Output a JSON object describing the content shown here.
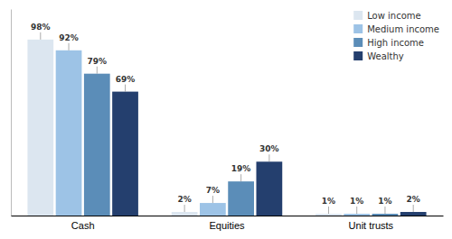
{
  "chart_data": {
    "type": "bar",
    "categories": [
      "Cash",
      "Equities",
      "Unit trusts"
    ],
    "series": [
      {
        "name": "Low income",
        "color": "#dce6f0",
        "values": [
          98,
          2,
          1
        ],
        "value_labels": [
          "98%",
          "2%",
          "1%"
        ]
      },
      {
        "name": "Medium income",
        "color": "#9dc3e6",
        "values": [
          92,
          7,
          1
        ],
        "value_labels": [
          "92%",
          "7%",
          "1%"
        ]
      },
      {
        "name": "High income",
        "color": "#5b8db8",
        "values": [
          79,
          19,
          1
        ],
        "value_labels": [
          "79%",
          "19%",
          "1%"
        ]
      },
      {
        "name": "Wealthy",
        "color": "#243f6e",
        "values": [
          69,
          30,
          2
        ],
        "value_labels": [
          "69%",
          "30%",
          "2%"
        ]
      }
    ],
    "ylim": [
      0,
      115
    ],
    "data_labels": true,
    "tick_labels": "x",
    "legend": "upper right",
    "grid": false
  }
}
